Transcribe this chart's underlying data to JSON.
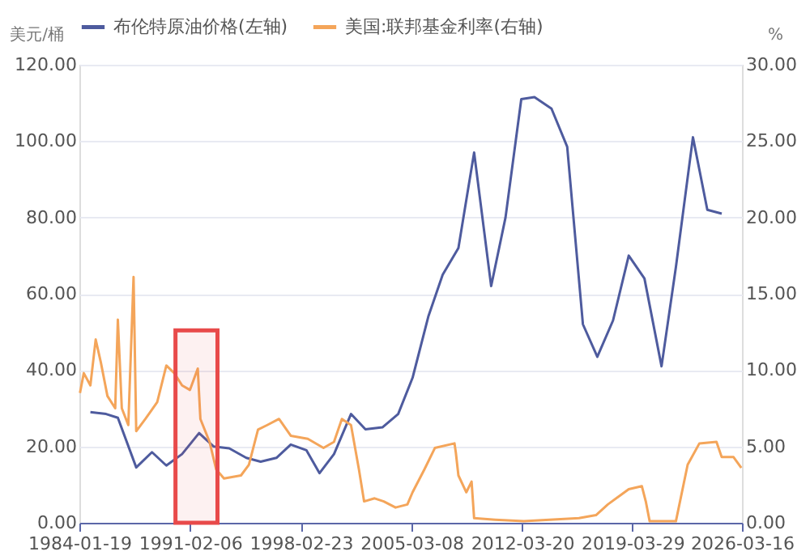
{
  "chart_data": {
    "type": "line",
    "ylabel": "美元/桶",
    "y2label": "%",
    "xlim": [
      "1984-01-19",
      "2026-03-16"
    ],
    "xticks": [
      "1984-01-19",
      "1991-02-06",
      "1998-02-23",
      "2005-03-08",
      "2012-03-20",
      "2019-03-29",
      "2026-03-16"
    ],
    "ylim": [
      0,
      120
    ],
    "yticks": [
      {
        "value": 0,
        "label": "0.00"
      },
      {
        "value": 20,
        "label": "20.00"
      },
      {
        "value": 40,
        "label": "40.00"
      },
      {
        "value": 60,
        "label": "60.00"
      },
      {
        "value": 80,
        "label": "80.00"
      },
      {
        "value": 100,
        "label": "100.00"
      },
      {
        "value": 120,
        "label": "120.00"
      }
    ],
    "y2lim": [
      0,
      30
    ],
    "y2ticks": [
      {
        "value": 0,
        "label": "0.00"
      },
      {
        "value": 5,
        "label": "5.00"
      },
      {
        "value": 10,
        "label": "10.00"
      },
      {
        "value": 15,
        "label": "15.00"
      },
      {
        "value": 20,
        "label": "20.00"
      },
      {
        "value": 25,
        "label": "25.00"
      },
      {
        "value": 30,
        "label": "30.00"
      }
    ],
    "grid": "y",
    "legend": "top left",
    "marker": "none",
    "line_style": "solid",
    "bands": [
      {
        "axis": "x",
        "from": "1990-03",
        "to": "1992-11",
        "color": "#e84a4a"
      }
    ],
    "series": [
      {
        "name": "布伦特原油价格(左轴)",
        "color": "#4e5b9e",
        "x": [
          "1984-10",
          "1985-10",
          "1986-07",
          "1987-09",
          "1988-09",
          "1989-08",
          "1990-08",
          "1991-09",
          "1992-08",
          "1993-08",
          "1994-09",
          "1995-08",
          "1996-08",
          "1997-07",
          "1998-07",
          "1999-05",
          "2000-04",
          "2001-05",
          "2002-04",
          "2003-05",
          "2004-05",
          "2005-04",
          "2006-04",
          "2007-03",
          "2008-03",
          "2009-03",
          "2010-04",
          "2011-03",
          "2012-03",
          "2013-01",
          "2014-02",
          "2015-02",
          "2016-02",
          "2017-01",
          "2018-01",
          "2019-01",
          "2020-01",
          "2021-02",
          "2022-01",
          "2023-02",
          "2024-01",
          "2024-12"
        ],
        "values": [
          29,
          28.5,
          27.5,
          14.5,
          18.5,
          15,
          18,
          23.5,
          20,
          19.5,
          17,
          16,
          17,
          20.5,
          19,
          13,
          18,
          28.5,
          24.5,
          25,
          28.5,
          38,
          54,
          65,
          72,
          97,
          62,
          80,
          111,
          111.5,
          108.5,
          98.5,
          52,
          43.5,
          53,
          70,
          64,
          41,
          67,
          101,
          82,
          81
        ]
      },
      {
        "name": "美国:联邦基金利率(右轴)",
        "color": "#f4a55a",
        "axis": "y2",
        "x": [
          "1984-02",
          "1984-05",
          "1984-10",
          "1985-02",
          "1985-06",
          "1985-11",
          "1986-05",
          "1986-07",
          "1986-10",
          "1987-03",
          "1987-07",
          "1987-09",
          "1988-04",
          "1989-01",
          "1989-08",
          "1990-02",
          "1990-08",
          "1991-02",
          "1991-08",
          "1991-10",
          "1992-05",
          "1992-10",
          "1993-04",
          "1994-05",
          "1994-11",
          "1995-06",
          "1996-01",
          "1996-10",
          "1997-07",
          "1998-08",
          "1999-08",
          "2000-04",
          "2000-10",
          "2001-05",
          "2001-11",
          "2002-03",
          "2002-11",
          "2003-06",
          "2004-03",
          "2004-12",
          "2005-04",
          "2006-01",
          "2006-09",
          "2007-12",
          "2008-01",
          "2008-03",
          "2008-09",
          "2009-01",
          "2009-03",
          "2010-07",
          "2012-05",
          "2015-11",
          "2016-12",
          "2017-09",
          "2019-01",
          "2019-11",
          "2020-02",
          "2020-05",
          "2022-01",
          "2022-10",
          "2023-07",
          "2024-08",
          "2024-12",
          "2025-09",
          "2026-03"
        ],
        "values": [
          8.5,
          9.8,
          9.0,
          12.0,
          10.5,
          8.3,
          7.5,
          13.3,
          7.5,
          6.4,
          16.1,
          6.0,
          6.8,
          7.9,
          10.3,
          9.8,
          9.0,
          8.7,
          10.1,
          6.8,
          5.3,
          3.5,
          2.9,
          3.1,
          3.8,
          6.1,
          6.4,
          6.8,
          5.7,
          5.5,
          4.9,
          5.3,
          6.8,
          6.4,
          3.5,
          1.4,
          1.6,
          1.4,
          1.0,
          1.2,
          2.0,
          3.5,
          4.9,
          5.2,
          4.6,
          3.1,
          2.0,
          2.7,
          0.3,
          0.2,
          0.1,
          0.3,
          0.5,
          1.2,
          2.2,
          2.4,
          1.4,
          0.1,
          0.1,
          3.8,
          5.2,
          5.3,
          4.3,
          4.3,
          3.6
        ]
      }
    ]
  }
}
